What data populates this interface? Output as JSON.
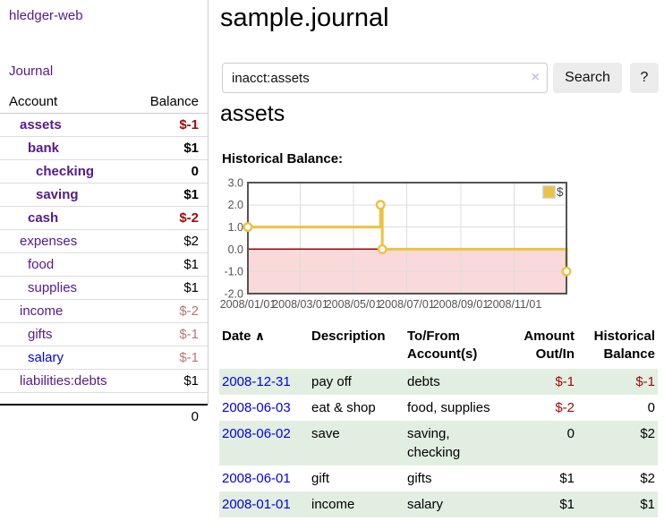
{
  "app": {
    "title": "hledger-web"
  },
  "nav": {
    "journal": "Journal"
  },
  "sidebar": {
    "header": {
      "account": "Account",
      "balance": "Balance"
    },
    "accounts": [
      {
        "name": "assets",
        "balance": "$-1"
      },
      {
        "name": "bank",
        "balance": "$1"
      },
      {
        "name": "checking",
        "balance": "0"
      },
      {
        "name": "saving",
        "balance": "$1"
      },
      {
        "name": "cash",
        "balance": "$-2"
      },
      {
        "name": "expenses",
        "balance": "$2"
      },
      {
        "name": "food",
        "balance": "$1"
      },
      {
        "name": "supplies",
        "balance": "$1"
      },
      {
        "name": "income",
        "balance": "$-2"
      },
      {
        "name": "gifts",
        "balance": "$-1"
      },
      {
        "name": "salary",
        "balance": "$-1"
      },
      {
        "name": "liabilities:debts",
        "balance": "$1"
      }
    ],
    "total": "0"
  },
  "main": {
    "title": "sample.journal",
    "search": {
      "value": "inacct:assets",
      "clear_icon": "×",
      "button": "Search",
      "help_button": "?"
    },
    "account_heading": "assets",
    "chart_label": "Historical Balance:"
  },
  "chart_data": {
    "type": "line",
    "steps": true,
    "title": "Historical Balance:",
    "series": [
      {
        "name": "$",
        "color": "#edc240",
        "points": [
          [
            "2008-01-01",
            1
          ],
          [
            "2008-06-01",
            2
          ],
          [
            "2008-06-03",
            0
          ],
          [
            "2008-12-31",
            -1
          ]
        ]
      }
    ],
    "x_ticks": [
      "2008/01/01",
      "2008/03/01",
      "2008/05/01",
      "2008/07/01",
      "2008/09/01",
      "2008/11/01"
    ],
    "y_ticks": [
      "3.0",
      "2.0",
      "1.0",
      "0.0",
      "-1.0",
      "-2.0"
    ],
    "xlim": [
      "2008-01-01",
      "2008-12-31"
    ],
    "ylim": [
      -2,
      3
    ],
    "grid": true,
    "legend_position": "top-right",
    "legend_label": "$",
    "negative_region_fill": "#f9d9d9",
    "zero_line_color": "#a40000",
    "grid_color": "#dddddd",
    "border_color": "#545454",
    "tick_label_color": "#545454"
  },
  "register": {
    "headers": {
      "date": "Date",
      "sort_indicator": "∧",
      "description": "Description",
      "accounts": "To/From Account(s)",
      "amount": "Amount Out/In",
      "balance": "Historical Balance"
    },
    "rows": [
      {
        "date": "2008-12-31",
        "description": "pay off",
        "accounts": "debts",
        "amount": "$-1",
        "balance": "$-1"
      },
      {
        "date": "2008-06-03",
        "description": "eat & shop",
        "accounts": "food, supplies",
        "amount": "$-2",
        "balance": "0"
      },
      {
        "date": "2008-06-02",
        "description": "save",
        "accounts": "saving, checking",
        "amount": "0",
        "balance": "$2"
      },
      {
        "date": "2008-06-01",
        "description": "gift",
        "accounts": "gifts",
        "amount": "$1",
        "balance": "$2"
      },
      {
        "date": "2008-01-01",
        "description": "income",
        "accounts": "salary",
        "amount": "$1",
        "balance": "$1"
      }
    ]
  }
}
